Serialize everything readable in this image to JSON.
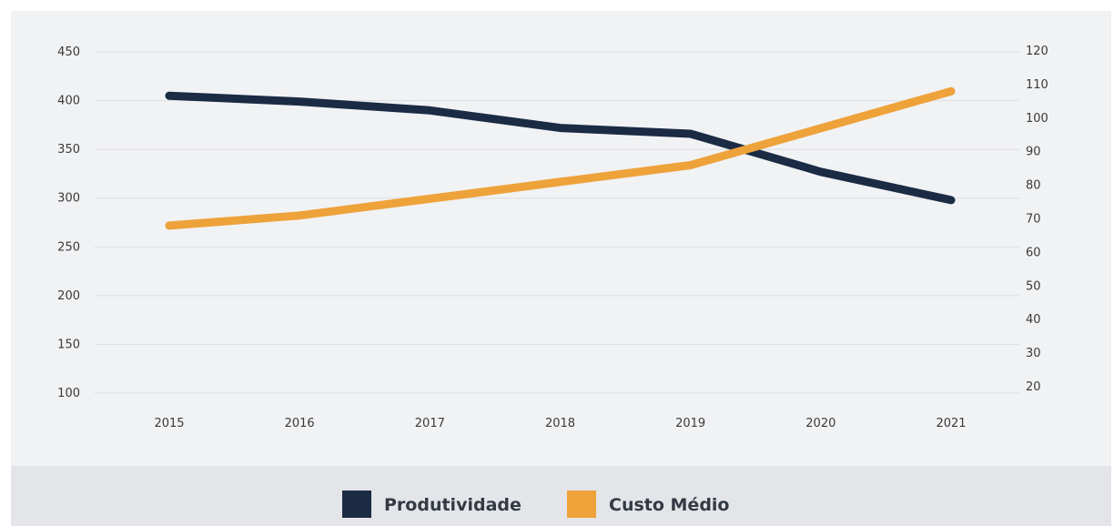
{
  "chart_data": {
    "type": "line",
    "x": [
      "2015",
      "2016",
      "2017",
      "2018",
      "2019",
      "2020",
      "2021"
    ],
    "y_left_ticks": [
      "450",
      "400",
      "350",
      "300",
      "250",
      "200",
      "150",
      "100"
    ],
    "y_right_ticks": [
      "120",
      "110",
      "100",
      "90",
      "80",
      "70",
      "60",
      "50",
      "40",
      "30",
      "20"
    ],
    "y_left_range": [
      100,
      450
    ],
    "y_right_range": [
      20,
      120
    ],
    "grid": true,
    "legend_position": "bottom",
    "series": [
      {
        "name": "Produtividade",
        "axis": "left",
        "color": "#1b2b44",
        "values": [
          405,
          399,
          390,
          372,
          366,
          327,
          298
        ]
      },
      {
        "name": "Custo Médio",
        "axis": "right",
        "color": "#eea23a",
        "values": [
          68,
          71,
          76,
          81,
          86,
          97,
          108
        ]
      }
    ]
  }
}
